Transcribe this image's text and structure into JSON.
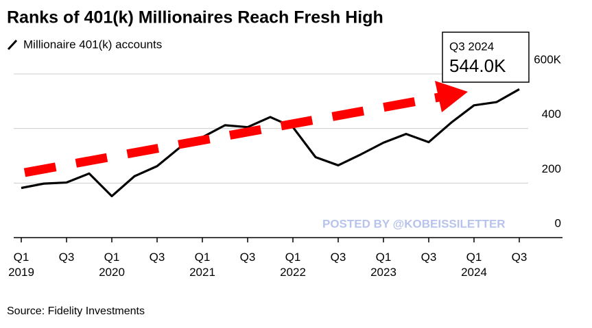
{
  "chart_data": {
    "type": "line",
    "title": "Ranks of 401(k) Millionaires Reach Fresh High",
    "categories": [
      "Q1 2019",
      null,
      "Q3",
      null,
      "Q1 2020",
      null,
      "Q3",
      null,
      "Q1 2021",
      null,
      "Q3",
      null,
      "Q1 2022",
      null,
      "Q3",
      null,
      "Q1 2023",
      null,
      "Q3",
      null,
      "Q1 2024",
      null,
      "Q3"
    ],
    "series": [
      {
        "name": "Millionaire 401(k) accounts",
        "color": "#000000",
        "values": [
          182,
          198,
          202,
          235,
          152,
          225,
          262,
          330,
          368,
          412,
          405,
          442,
          405,
          295,
          265,
          305,
          348,
          380,
          350,
          422,
          485,
          497,
          544
        ],
        "value_labels": [
          null,
          null,
          null,
          null,
          null,
          null,
          null,
          null,
          null,
          null,
          null,
          null,
          null,
          null,
          null,
          null,
          null,
          null,
          null,
          null,
          null,
          null,
          "544.0K"
        ]
      }
    ],
    "callout_title": "Q3 2024",
    "ylim": [
      0,
      600
    ],
    "yticks": [
      0,
      200,
      400,
      {
        "value": 600,
        "label": "600K"
      }
    ],
    "grid": true,
    "watermark": "POSTED BY @KOBEISSILETTER",
    "source": "Source: Fidelity Investments"
  }
}
